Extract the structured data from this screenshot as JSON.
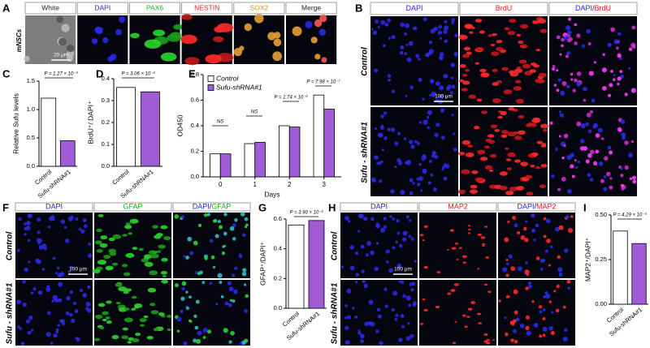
{
  "panels": [
    {
      "label": "A",
      "row_labels": [
        "mNSCs"
      ],
      "columns": [
        [
          "White"
        ],
        [
          "DAPI"
        ],
        [
          "PAX6"
        ],
        [
          "NESTIN"
        ],
        [
          "SOX2"
        ],
        [
          "Merge"
        ]
      ],
      "scale_bar": "20 μm"
    },
    {
      "label": "B",
      "row_labels": [
        "Control",
        "Sufu - shRNA#1"
      ],
      "columns": [
        [
          "DAPI"
        ],
        [
          "BrdU"
        ],
        [
          "DAPI",
          "/",
          "BrdU"
        ]
      ],
      "scale_bar": "100 μm"
    },
    {
      "label": "F",
      "row_labels": [
        "Control",
        "Sufu - shRNA#1"
      ],
      "columns": [
        [
          "DAPI"
        ],
        [
          "GFAP"
        ],
        [
          "DAPI",
          "/",
          "GFAP"
        ]
      ],
      "scale_bar": "100 μm"
    },
    {
      "label": "H",
      "row_labels": [
        "Control",
        "Sufu - shRNA#1"
      ],
      "columns": [
        [
          "DAPI"
        ],
        [
          "MAP2"
        ],
        [
          "DAPI",
          "/",
          "MAP2"
        ]
      ],
      "scale_bar": "100 μm"
    }
  ],
  "chart_data": [
    {
      "type": "bar",
      "label": "C",
      "ylabel": "Relative Sufu levels",
      "categories": [
        "Control",
        "Sufu-shRNA#1"
      ],
      "values": [
        1.2,
        0.45
      ],
      "colors": [
        "#ffffff",
        "#a05cd5"
      ],
      "ylim": [
        0,
        1.5
      ],
      "yticks": [
        {
          "value": 0,
          "label": "0.0"
        },
        0.5,
        {
          "value": 1,
          "label": "1.0"
        },
        1.5
      ],
      "annotations": [
        "P = 1.27 × 10⁻³"
      ]
    },
    {
      "type": "bar",
      "label": "D",
      "ylabel": "BrdU⁺/ DAPI⁺",
      "categories": [
        "Control",
        "Sufu-shRNA#1"
      ],
      "values": [
        0.36,
        0.34
      ],
      "colors": [
        "#ffffff",
        "#a05cd5"
      ],
      "ylim": [
        0,
        0.4
      ],
      "yticks": [
        {
          "value": 0,
          "label": "0.0"
        },
        0.1,
        0.2,
        0.3,
        0.4
      ],
      "annotations": [
        "P = 3.06 × 10⁻²"
      ]
    },
    {
      "type": "grouped-bar",
      "label": "E",
      "ylabel": "OD450",
      "xlabel": "Days",
      "categories": [
        "0",
        "1",
        "2",
        "3"
      ],
      "series": [
        {
          "name": "Control",
          "color": "#ffffff",
          "values": [
            0.18,
            0.26,
            0.4,
            0.64
          ]
        },
        {
          "name": "Sufu-shRNA#1",
          "color": "#a05cd5",
          "values": [
            0.18,
            0.27,
            0.39,
            0.53
          ]
        }
      ],
      "ylim": [
        0,
        0.8
      ],
      "yticks": [
        {
          "value": 0,
          "label": "0.0"
        },
        0.2,
        0.4,
        0.6,
        0.8
      ],
      "annotations": [
        "NS",
        "NS",
        "P = 1.74 × 10⁻²",
        "P = 7.98 × 10⁻⁷"
      ]
    },
    {
      "type": "bar",
      "label": "G",
      "ylabel": "GFAP⁺/DAPI⁺",
      "categories": [
        "Control",
        "Sufu-shRNA#1"
      ],
      "values": [
        0.56,
        0.59
      ],
      "colors": [
        "#ffffff",
        "#a05cd5"
      ],
      "ylim": [
        0,
        0.6
      ],
      "yticks": [
        {
          "value": 0,
          "label": "0.0"
        },
        0.2,
        0.4,
        0.6
      ],
      "annotations": [
        "P = 3.90 × 10⁻²"
      ]
    },
    {
      "type": "bar",
      "label": "I",
      "ylabel": "MAP2⁺/DAPI⁺",
      "categories": [
        "Control",
        "Sufu-shRNA#1"
      ],
      "values": [
        0.41,
        0.34
      ],
      "colors": [
        "#ffffff",
        "#a05cd5"
      ],
      "ylim": [
        0,
        0.5
      ],
      "yticks": [
        {
          "value": 0,
          "label": "0.00"
        },
        0.25,
        {
          "value": 0.5,
          "label": "0.50"
        }
      ],
      "annotations": [
        "P = 4.29 × 10⁻³"
      ]
    }
  ]
}
